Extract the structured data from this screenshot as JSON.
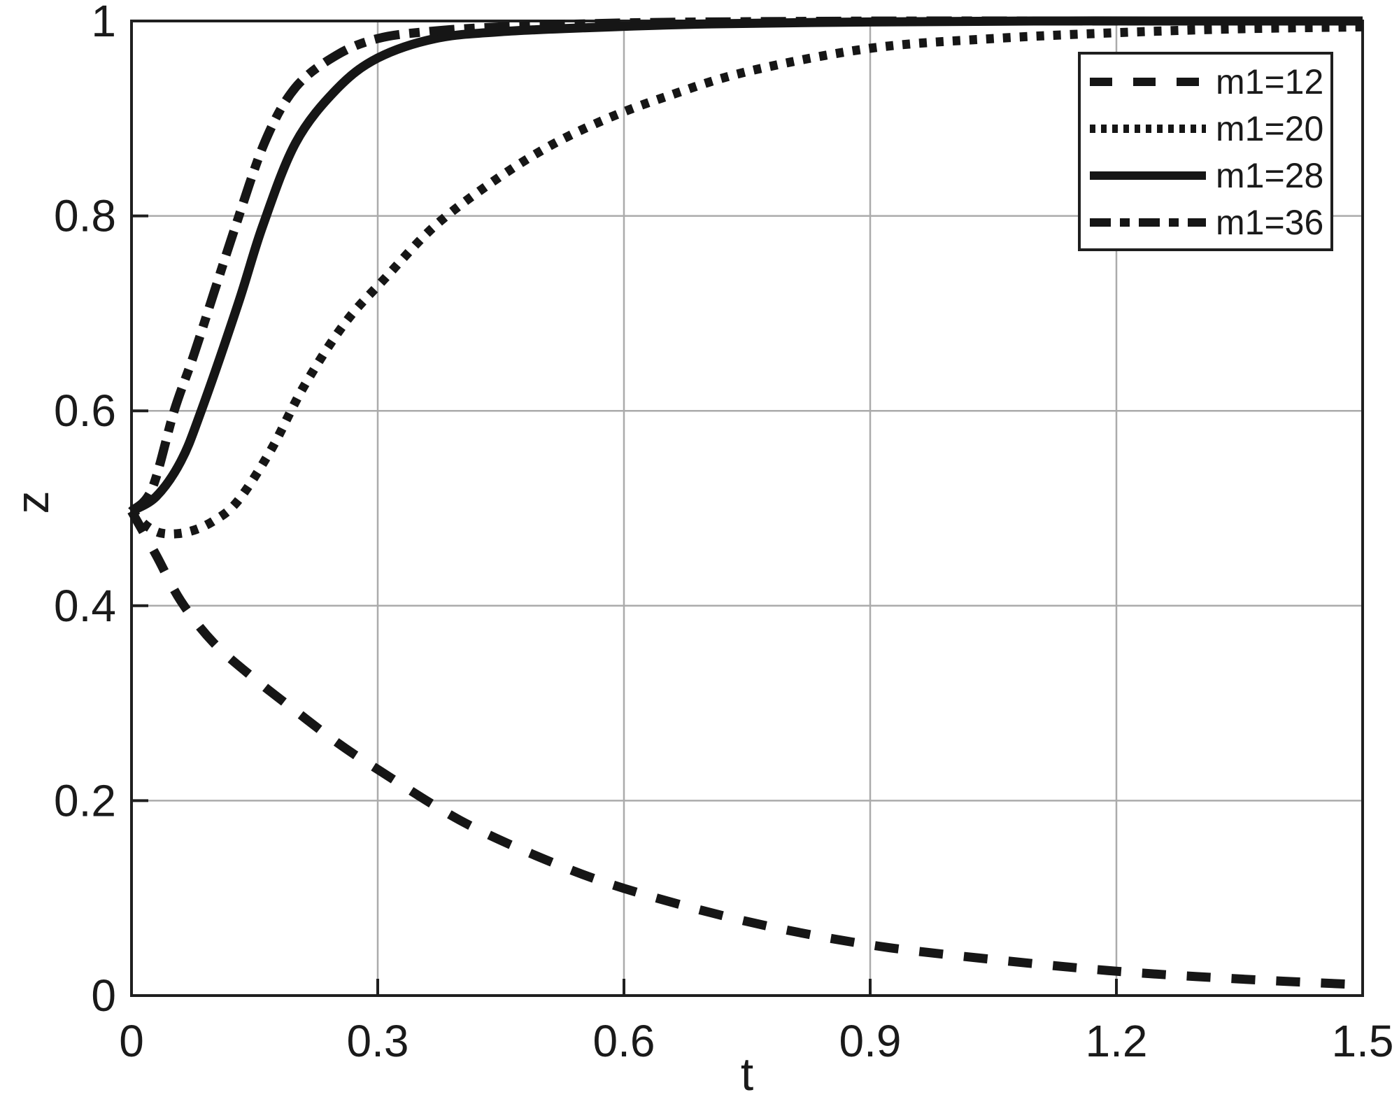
{
  "chart_data": {
    "type": "line",
    "title": "",
    "xlabel": "t",
    "ylabel": "z",
    "xlim": [
      0,
      1.5
    ],
    "ylim": [
      0,
      1
    ],
    "x_ticks": [
      {
        "value": 0,
        "label": "0"
      },
      {
        "value": 0.3,
        "label": "0.3"
      },
      {
        "value": 0.6,
        "label": "0.6"
      },
      {
        "value": 0.9,
        "label": "0.9"
      },
      {
        "value": 1.2,
        "label": "1.2"
      },
      {
        "value": 1.5,
        "label": "1.5"
      }
    ],
    "y_ticks": [
      {
        "value": 0,
        "label": "0"
      },
      {
        "value": 0.2,
        "label": "0.2"
      },
      {
        "value": 0.4,
        "label": "0.4"
      },
      {
        "value": 0.6,
        "label": "0.6"
      },
      {
        "value": 0.8,
        "label": "0.8"
      },
      {
        "value": 1,
        "label": "1"
      }
    ],
    "grid": true,
    "legend_position": "top-right",
    "series": [
      {
        "name": "m1=12",
        "style": "dashed",
        "points": [
          [
            0,
            0.497
          ],
          [
            0.03,
            0.452
          ],
          [
            0.06,
            0.405
          ],
          [
            0.1,
            0.362
          ],
          [
            0.15,
            0.325
          ],
          [
            0.2,
            0.292
          ],
          [
            0.25,
            0.26
          ],
          [
            0.3,
            0.232
          ],
          [
            0.4,
            0.18
          ],
          [
            0.5,
            0.141
          ],
          [
            0.6,
            0.11
          ],
          [
            0.75,
            0.076
          ],
          [
            0.9,
            0.052
          ],
          [
            1.05,
            0.037
          ],
          [
            1.2,
            0.025
          ],
          [
            1.35,
            0.017
          ],
          [
            1.5,
            0.011
          ]
        ]
      },
      {
        "name": "m1=20",
        "style": "dotted",
        "points": [
          [
            0,
            0.497
          ],
          [
            0.02,
            0.481
          ],
          [
            0.04,
            0.474
          ],
          [
            0.07,
            0.476
          ],
          [
            0.1,
            0.487
          ],
          [
            0.13,
            0.508
          ],
          [
            0.17,
            0.56
          ],
          [
            0.21,
            0.625
          ],
          [
            0.26,
            0.69
          ],
          [
            0.31,
            0.737
          ],
          [
            0.37,
            0.79
          ],
          [
            0.44,
            0.835
          ],
          [
            0.51,
            0.872
          ],
          [
            0.58,
            0.9
          ],
          [
            0.65,
            0.922
          ],
          [
            0.75,
            0.948
          ],
          [
            0.9,
            0.972
          ],
          [
            1.05,
            0.982
          ],
          [
            1.2,
            0.988
          ],
          [
            1.35,
            0.992
          ],
          [
            1.5,
            0.994
          ]
        ]
      },
      {
        "name": "m1=28",
        "style": "solid",
        "points": [
          [
            0,
            0.497
          ],
          [
            0.03,
            0.512
          ],
          [
            0.06,
            0.548
          ],
          [
            0.085,
            0.6
          ],
          [
            0.13,
            0.71
          ],
          [
            0.16,
            0.79
          ],
          [
            0.2,
            0.875
          ],
          [
            0.25,
            0.93
          ],
          [
            0.3,
            0.962
          ],
          [
            0.37,
            0.982
          ],
          [
            0.45,
            0.989
          ],
          [
            0.55,
            0.993
          ],
          [
            0.7,
            0.997
          ],
          [
            0.9,
            0.999
          ],
          [
            1.1,
            1.0
          ],
          [
            1.3,
            1.0
          ],
          [
            1.5,
            1.0
          ]
        ]
      },
      {
        "name": "m1=36",
        "style": "dash-dot",
        "points": [
          [
            0,
            0.497
          ],
          [
            0.025,
            0.52
          ],
          [
            0.052,
            0.6
          ],
          [
            0.075,
            0.655
          ],
          [
            0.1,
            0.72
          ],
          [
            0.127,
            0.79
          ],
          [
            0.163,
            0.877
          ],
          [
            0.2,
            0.932
          ],
          [
            0.25,
            0.965
          ],
          [
            0.3,
            0.982
          ],
          [
            0.36,
            0.989
          ],
          [
            0.45,
            0.994
          ],
          [
            0.6,
            0.998
          ],
          [
            0.8,
            0.9995
          ],
          [
            1.0,
            1.0
          ],
          [
            1.25,
            1.0
          ],
          [
            1.5,
            1.0
          ]
        ]
      }
    ]
  },
  "colors": {
    "line": "#161616",
    "grid": "#ababab",
    "axis": "#1f1f1f",
    "tick_label": "#1a1a1a",
    "background": "#ffffff",
    "legend_border": "#1f1f1f",
    "legend_background": "#ffffff"
  }
}
